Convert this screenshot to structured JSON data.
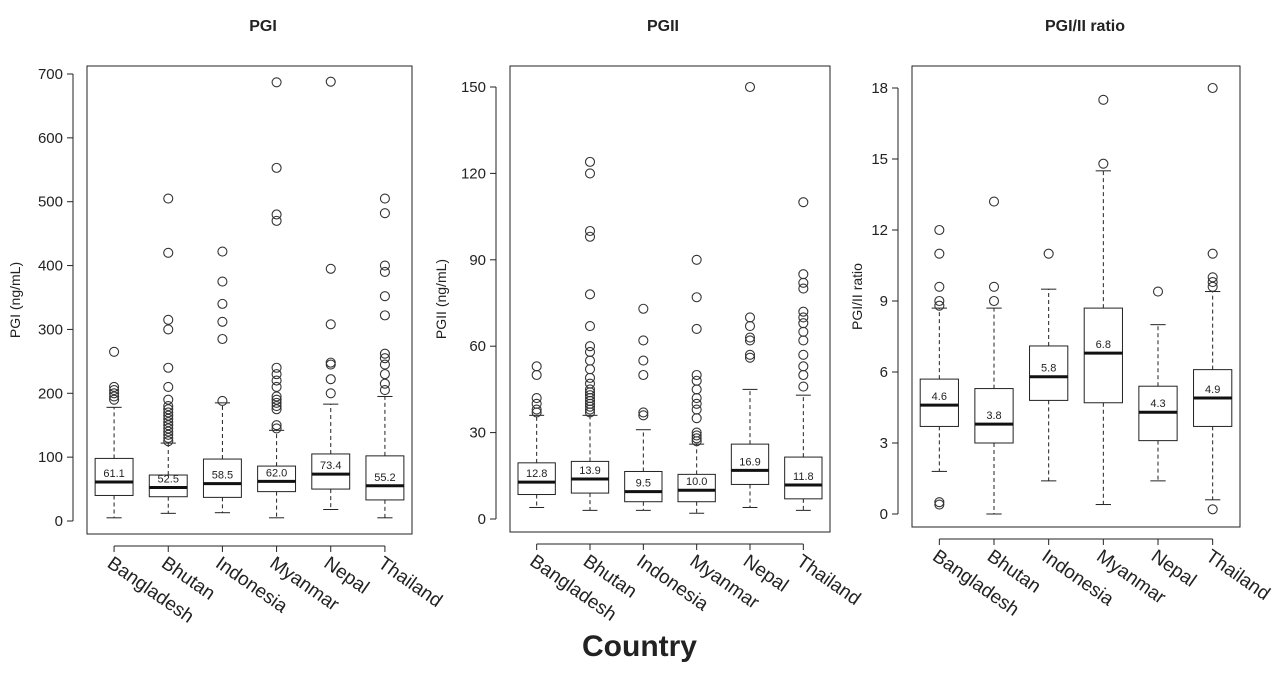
{
  "figure": {
    "xlabel": "Country"
  },
  "chart_data": [
    {
      "type": "box",
      "title": "PGI",
      "ylabel": "PGI  (ng/mL)",
      "xlabel": "",
      "ylim": [
        0,
        700
      ],
      "yticks": [
        0,
        100,
        200,
        300,
        400,
        500,
        600,
        700
      ],
      "categories": [
        "Bangladesh",
        "Bhutan",
        "Indonesia",
        "Myanmar",
        "Nepal",
        "Thailand"
      ],
      "boxes": [
        {
          "category": "Bangladesh",
          "median": 61.1,
          "q1": 40,
          "q3": 98,
          "whisker_low": 5,
          "whisker_high": 178,
          "outliers": [
            190,
            195,
            200,
            205,
            210,
            265
          ],
          "label": "61.1"
        },
        {
          "category": "Bhutan",
          "median": 52.5,
          "q1": 38,
          "q3": 72,
          "whisker_low": 12,
          "whisker_high": 122,
          "outliers": [
            125,
            130,
            135,
            140,
            145,
            150,
            155,
            160,
            165,
            170,
            175,
            180,
            190,
            210,
            240,
            300,
            315,
            420,
            505
          ],
          "label": "52.5"
        },
        {
          "category": "Indonesia",
          "median": 58.5,
          "q1": 37,
          "q3": 97,
          "whisker_low": 13,
          "whisker_high": 185,
          "outliers": [
            188,
            285,
            312,
            340,
            375,
            422
          ],
          "label": "58.5"
        },
        {
          "category": "Myanmar",
          "median": 62.0,
          "q1": 46,
          "q3": 86,
          "whisker_low": 5,
          "whisker_high": 142,
          "outliers": [
            145,
            150,
            175,
            180,
            185,
            190,
            195,
            210,
            220,
            230,
            240,
            470,
            480,
            553,
            687
          ],
          "label": "62.0"
        },
        {
          "category": "Nepal",
          "median": 73.4,
          "q1": 50,
          "q3": 105,
          "whisker_low": 18,
          "whisker_high": 183,
          "outliers": [
            200,
            222,
            245,
            248,
            308,
            395,
            688
          ],
          "label": "73.4"
        },
        {
          "category": "Thailand",
          "median": 55.2,
          "q1": 33,
          "q3": 102,
          "whisker_low": 5,
          "whisker_high": 195,
          "outliers": [
            205,
            215,
            230,
            245,
            255,
            262,
            322,
            352,
            390,
            400,
            482,
            505
          ],
          "label": "55.2"
        }
      ]
    },
    {
      "type": "box",
      "title": "PGII",
      "ylabel": "PGII  (ng/mL)",
      "xlabel": "",
      "ylim": [
        0,
        150
      ],
      "yticks": [
        0,
        30,
        60,
        90,
        120,
        150
      ],
      "categories": [
        "Bangladesh",
        "Bhutan",
        "Indonesia",
        "Myanmar",
        "Nepal",
        "Thailand"
      ],
      "boxes": [
        {
          "category": "Bangladesh",
          "median": 12.8,
          "q1": 8.5,
          "q3": 19.5,
          "whisker_low": 4,
          "whisker_high": 36,
          "outliers": [
            37,
            38,
            40,
            42,
            50,
            53
          ],
          "label": "12.8"
        },
        {
          "category": "Bhutan",
          "median": 13.9,
          "q1": 9,
          "q3": 20,
          "whisker_low": 3,
          "whisker_high": 36,
          "outliers": [
            37,
            38,
            39,
            40,
            41,
            42,
            43,
            44,
            45,
            47,
            49,
            52,
            55,
            58,
            60,
            67,
            78,
            98,
            100,
            120,
            124
          ],
          "label": "13.9"
        },
        {
          "category": "Indonesia",
          "median": 9.5,
          "q1": 6,
          "q3": 16.5,
          "whisker_low": 3,
          "whisker_high": 31,
          "outliers": [
            36,
            37,
            50,
            55,
            62,
            73
          ],
          "label": "9.5"
        },
        {
          "category": "Myanmar",
          "median": 10.0,
          "q1": 6,
          "q3": 15.5,
          "whisker_low": 2,
          "whisker_high": 26,
          "outliers": [
            27,
            28,
            29,
            30,
            35,
            38,
            40,
            42,
            45,
            48,
            50,
            66,
            77,
            90
          ],
          "label": "10.0"
        },
        {
          "category": "Nepal",
          "median": 16.9,
          "q1": 12,
          "q3": 26,
          "whisker_low": 4,
          "whisker_high": 45,
          "outliers": [
            56,
            57,
            62,
            63,
            67,
            70,
            150
          ],
          "label": "16.9"
        },
        {
          "category": "Thailand",
          "median": 11.8,
          "q1": 7,
          "q3": 21.5,
          "whisker_low": 3,
          "whisker_high": 43,
          "outliers": [
            46,
            50,
            53,
            57,
            62,
            65,
            68,
            70,
            72,
            80,
            82,
            85,
            110
          ],
          "label": "11.8"
        }
      ]
    },
    {
      "type": "box",
      "title": "PGI/II ratio",
      "ylabel": "PGI/II ratio",
      "xlabel": "",
      "ylim": [
        0,
        18
      ],
      "yticks": [
        0,
        3,
        6,
        9,
        12,
        15,
        18
      ],
      "categories": [
        "Bangladesh",
        "Bhutan",
        "Indonesia",
        "Myanmar",
        "Nepal",
        "Thailand"
      ],
      "boxes": [
        {
          "category": "Bangladesh",
          "median": 4.6,
          "q1": 3.7,
          "q3": 5.7,
          "whisker_low": 1.8,
          "whisker_high": 8.7,
          "outliers": [
            0.4,
            0.5,
            8.8,
            9.0,
            9.6,
            11.0,
            12.0
          ],
          "label": "4.6"
        },
        {
          "category": "Bhutan",
          "median": 3.8,
          "q1": 3.0,
          "q3": 5.3,
          "whisker_low": 0.0,
          "whisker_high": 8.7,
          "outliers": [
            9.0,
            9.6,
            13.2
          ],
          "label": "3.8"
        },
        {
          "category": "Indonesia",
          "median": 5.8,
          "q1": 4.8,
          "q3": 7.1,
          "whisker_low": 1.4,
          "whisker_high": 9.5,
          "outliers": [
            11.0
          ],
          "label": "5.8"
        },
        {
          "category": "Myanmar",
          "median": 6.8,
          "q1": 4.7,
          "q3": 8.7,
          "whisker_low": 0.4,
          "whisker_high": 14.5,
          "outliers": [
            14.8,
            17.5
          ],
          "label": "6.8"
        },
        {
          "category": "Nepal",
          "median": 4.3,
          "q1": 3.1,
          "q3": 5.4,
          "whisker_low": 1.4,
          "whisker_high": 8.0,
          "outliers": [
            9.4
          ],
          "label": "4.3"
        },
        {
          "category": "Thailand",
          "median": 4.9,
          "q1": 3.7,
          "q3": 6.1,
          "whisker_low": 0.6,
          "whisker_high": 9.4,
          "outliers": [
            0.2,
            9.6,
            9.8,
            10.0,
            11.0,
            18.0
          ],
          "label": "4.9"
        }
      ]
    }
  ]
}
